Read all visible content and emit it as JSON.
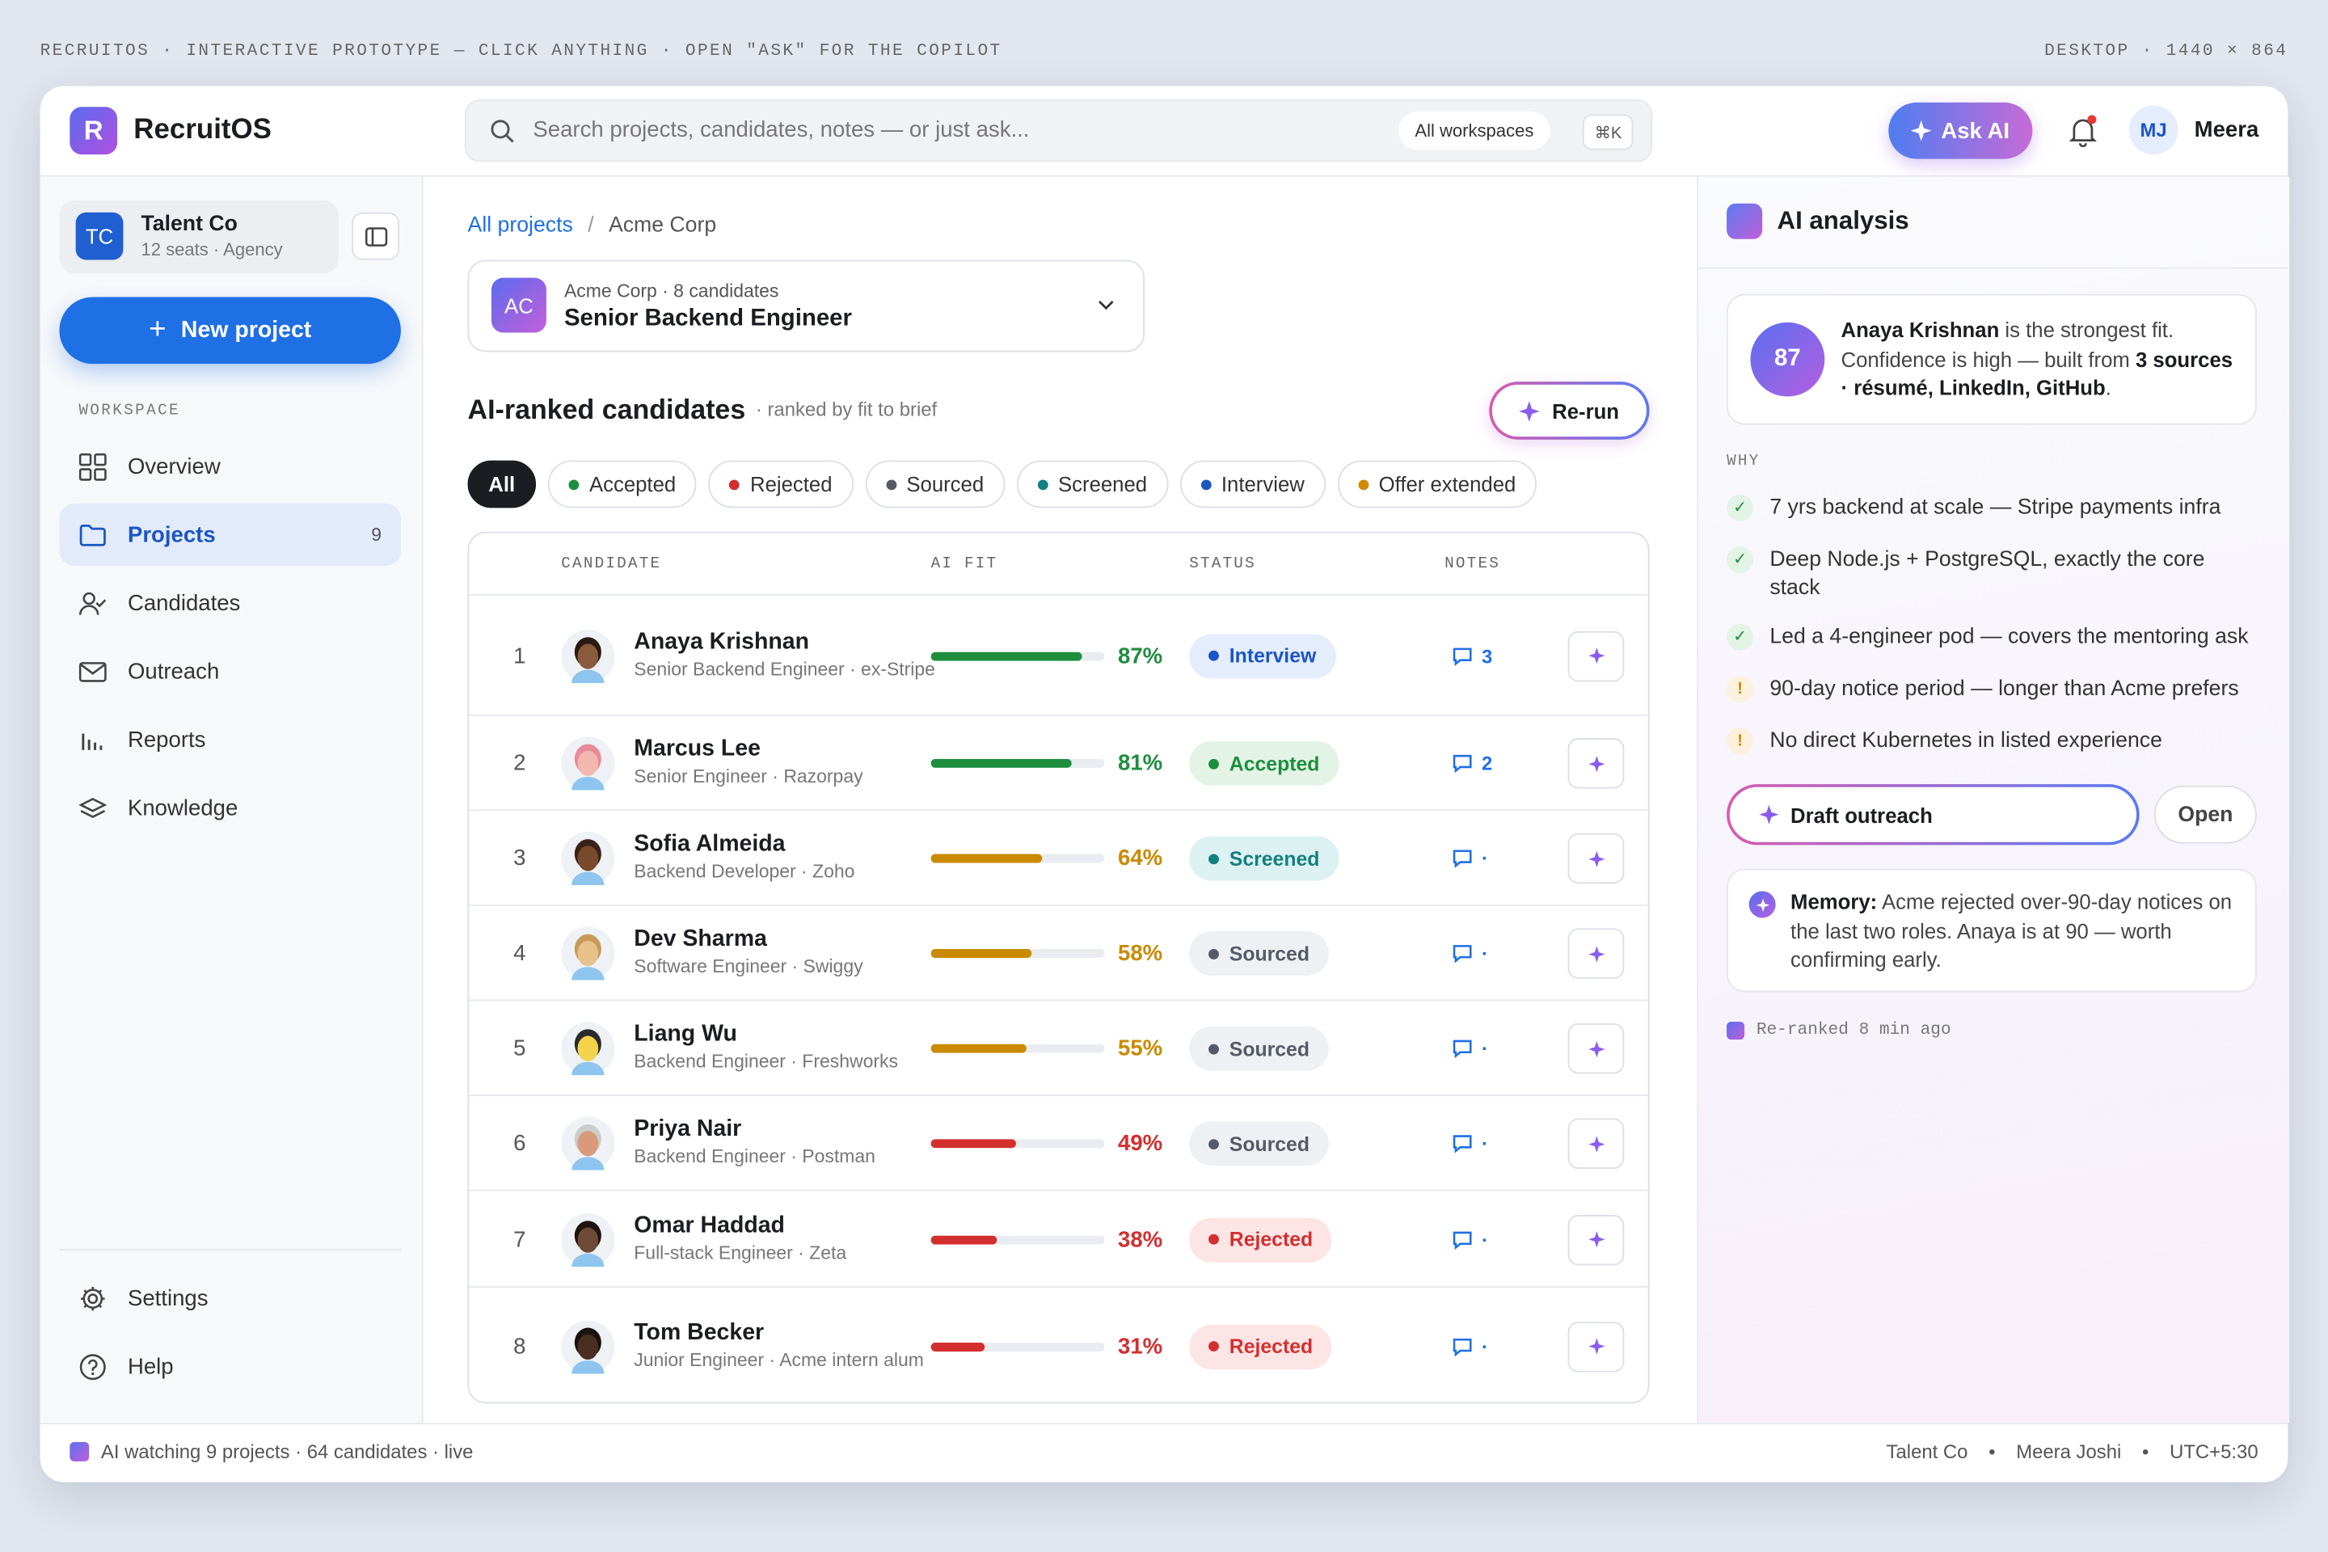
{
  "top_bar": {
    "left": "RECRUITOS · INTERACTIVE PROTOTYPE — CLICK ANYTHING · OPEN \"ASK\" FOR THE COPILOT",
    "right": "DESKTOP · 1440 × 864"
  },
  "header": {
    "logo": "R",
    "app_name": "RecruitOS",
    "search_placeholder": "Search projects, candidates, notes — or just ask...",
    "scope": "All workspaces",
    "shortcut": "⌘K",
    "ask_ai": "Ask AI",
    "user_initials": "MJ",
    "user_name": "Meera"
  },
  "sidebar": {
    "org_initials": "TC",
    "org_name": "Talent Co",
    "org_meta": "12 seats · Agency",
    "new_project": "New project",
    "section": "WORKSPACE",
    "nav": [
      {
        "label": "Overview"
      },
      {
        "label": "Projects",
        "count": 9
      },
      {
        "label": "Candidates"
      },
      {
        "label": "Outreach"
      },
      {
        "label": "Reports"
      },
      {
        "label": "Knowledge"
      }
    ],
    "footer": [
      {
        "label": "Settings"
      },
      {
        "label": "Help"
      }
    ]
  },
  "main": {
    "breadcrumb": [
      "All projects",
      "Acme Corp"
    ],
    "project": {
      "initials": "AC",
      "meta": "Acme Corp · 8 candidates",
      "title": "Senior Backend Engineer"
    },
    "heading": "AI-ranked candidates",
    "subheading": "· ranked by fit to brief",
    "rerun": "Re-run",
    "filters": [
      {
        "label": "All",
        "active": true
      },
      {
        "label": "Accepted",
        "color": "#1e8e3e",
        "tint": "#e3f4e7"
      },
      {
        "label": "Rejected",
        "color": "#d32f2f",
        "tint": "#fde5e5"
      },
      {
        "label": "Sourced",
        "color": "#555b66",
        "tint": "#eef0f3"
      },
      {
        "label": "Screened",
        "color": "#14807f",
        "tint": "#dcf2f2"
      },
      {
        "label": "Interview",
        "color": "#1a56c4",
        "tint": "#e5edfc"
      },
      {
        "label": "Offer extended",
        "color": "#d08a00",
        "tint": "#fcf1dc"
      }
    ],
    "table": {
      "columns": [
        "CANDIDATE",
        "AI FIT",
        "STATUS",
        "NOTES"
      ],
      "fit_range": [
        0,
        100
      ],
      "rows": [
        {
          "rank": 1,
          "name": "Anaya Krishnan",
          "role": "Senior Backend Engineer · ex-Stripe",
          "fit": {
            "value": 87,
            "label": "87%"
          },
          "fit_color": "#1e8e3e",
          "status": "Interview",
          "notes": "3"
        },
        {
          "rank": 2,
          "name": "Marcus Lee",
          "role": "Senior Engineer · Razorpay",
          "fit": {
            "value": 81,
            "label": "81%"
          },
          "fit_color": "#1e8e3e",
          "status": "Accepted",
          "notes": "2"
        },
        {
          "rank": 3,
          "name": "Sofia Almeida",
          "role": "Backend Developer · Zoho",
          "fit": {
            "value": 64,
            "label": "64%"
          },
          "fit_color": "#c98a00",
          "status": "Screened",
          "notes": "·"
        },
        {
          "rank": 4,
          "name": "Dev Sharma",
          "role": "Software Engineer · Swiggy",
          "fit": {
            "value": 58,
            "label": "58%"
          },
          "fit_color": "#c98a00",
          "status": "Sourced",
          "notes": "·"
        },
        {
          "rank": 5,
          "name": "Liang Wu",
          "role": "Backend Engineer · Freshworks",
          "fit": {
            "value": 55,
            "label": "55%"
          },
          "fit_color": "#c98a00",
          "status": "Sourced",
          "notes": "·"
        },
        {
          "rank": 6,
          "name": "Priya Nair",
          "role": "Backend Engineer · Postman",
          "fit": {
            "value": 49,
            "label": "49%"
          },
          "fit_color": "#d32f2f",
          "status": "Sourced",
          "notes": "·"
        },
        {
          "rank": 7,
          "name": "Omar Haddad",
          "role": "Full-stack Engineer · Zeta",
          "fit": {
            "value": 38,
            "label": "38%"
          },
          "fit_color": "#d32f2f",
          "status": "Rejected",
          "notes": "·"
        },
        {
          "rank": 8,
          "name": "Tom Becker",
          "role": "Junior Engineer · Acme intern alum",
          "fit": {
            "value": 31,
            "label": "31%"
          },
          "fit_color": "#d32f2f",
          "status": "Rejected",
          "notes": "·"
        }
      ]
    }
  },
  "panel": {
    "title": "AI analysis",
    "score": 87,
    "summary": [
      "Anaya Krishnan",
      " is the strongest fit. Confidence is high — built from ",
      "3 sources · résumé, LinkedIn, GitHub",
      "."
    ],
    "why": "WHY",
    "reasons": [
      {
        "icon": "✓",
        "color": "#1e8e3e",
        "tint": "#e3f4e7",
        "text": "7 yrs backend at scale — Stripe payments infra"
      },
      {
        "icon": "✓",
        "color": "#1e8e3e",
        "tint": "#e3f4e7",
        "text": "Deep Node.js + PostgreSQL, exactly the core stack"
      },
      {
        "icon": "✓",
        "color": "#1e8e3e",
        "tint": "#e3f4e7",
        "text": "Led a 4-engineer pod — covers the mentoring ask"
      },
      {
        "icon": "!",
        "color": "#c98a00",
        "tint": "#fcf1dc",
        "text": "90-day notice period — longer than Acme prefers"
      },
      {
        "icon": "!",
        "color": "#c98a00",
        "tint": "#fcf1dc",
        "text": "No direct Kubernetes in listed experience"
      }
    ],
    "draft": "Draft outreach",
    "open": "Open",
    "memory_label": "Memory:",
    "memory_text": " Acme rejected over-90-day notices on the last two roles. Anaya is at 90 — worth confirming early.",
    "footnote": "Re-ranked 8 min ago"
  },
  "status_bar": {
    "left": "AI watching 9 projects · 64 candidates · live",
    "right": [
      "Talent Co",
      "Meera Joshi",
      "UTC+5:30"
    ]
  }
}
